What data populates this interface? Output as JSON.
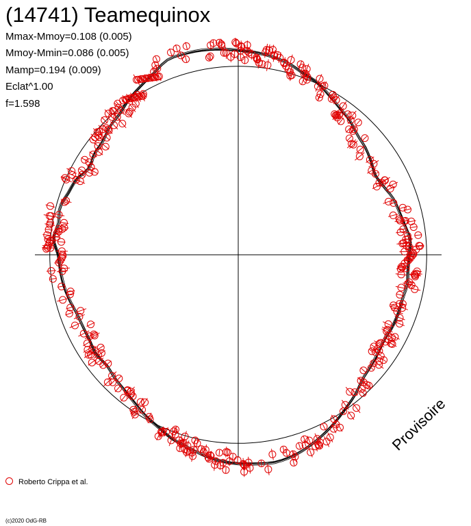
{
  "chart_data": {
    "type": "scatter",
    "title": "(14741) Teamequinox",
    "stats": [
      "Mmax-Mmoy=0.108 (0.005)",
      "Mmoy-Mmin=0.086 (0.005)",
      "Mamp=0.194 (0.009)",
      "Eclat^1.00",
      "f=1.598"
    ],
    "legend": [
      {
        "name": "Roberto Crippa et al.",
        "color": "#e00000"
      }
    ],
    "watermark": "Provisoire",
    "copyright": "(c)2020 OdG-RB",
    "axes": {
      "xlim": [
        -1,
        1
      ],
      "ylim": [
        -1,
        1
      ],
      "grid": false,
      "crosshair": true
    },
    "reference_circle": {
      "radius": 0.93
    },
    "model_curve": {
      "mmax_minus_mmoy": 0.108,
      "mmoy_minus_mmin": 0.086,
      "samples": 360
    },
    "points": [
      [
        0.0,
        0.862
      ],
      [
        5.0,
        0.87
      ],
      [
        10.0,
        0.853
      ],
      [
        15.0,
        0.84
      ],
      [
        20.0,
        0.83
      ],
      [
        25.0,
        0.808
      ],
      [
        30.0,
        0.795
      ],
      [
        35.0,
        0.812
      ],
      [
        40.0,
        0.83
      ],
      [
        45.0,
        0.842
      ],
      [
        50.0,
        0.868
      ],
      [
        55.0,
        0.887
      ],
      [
        60.0,
        0.912
      ],
      [
        65.0,
        0.941
      ],
      [
        70.0,
        0.958
      ],
      [
        75.0,
        0.983
      ],
      [
        80.0,
        1.0
      ],
      [
        85.0,
        1.01
      ],
      [
        90.0,
        1.018
      ],
      [
        95.0,
        1.028
      ],
      [
        100.0,
        1.035
      ],
      [
        105.0,
        1.037
      ],
      [
        110.0,
        1.034
      ],
      [
        115.0,
        1.0
      ],
      [
        120.0,
        0.975
      ],
      [
        125.0,
        0.953
      ],
      [
        130.0,
        0.925
      ],
      [
        135.0,
        0.913
      ],
      [
        140.0,
        0.89
      ],
      [
        145.0,
        0.885
      ],
      [
        150.0,
        0.87
      ],
      [
        155.0,
        0.9
      ],
      [
        160.0,
        0.912
      ],
      [
        165.0,
        0.93
      ],
      [
        170.0,
        0.92
      ],
      [
        175.0,
        0.935
      ],
      [
        180.0,
        0.908
      ],
      [
        185.0,
        0.9
      ],
      [
        190.0,
        0.893
      ],
      [
        195.0,
        0.88
      ],
      [
        200.0,
        0.865
      ],
      [
        205.0,
        0.86
      ],
      [
        210.0,
        0.86
      ],
      [
        215.0,
        0.868
      ],
      [
        220.0,
        0.858
      ],
      [
        225.0,
        0.87
      ],
      [
        230.0,
        0.881
      ],
      [
        235.0,
        0.9
      ],
      [
        240.0,
        0.925
      ],
      [
        245.0,
        0.945
      ],
      [
        250.0,
        0.972
      ],
      [
        255.0,
        0.99
      ],
      [
        260.0,
        1.012
      ],
      [
        265.0,
        1.03
      ],
      [
        270.0,
        1.04
      ],
      [
        275.0,
        1.045
      ],
      [
        280.0,
        1.05
      ],
      [
        285.0,
        1.04
      ],
      [
        290.0,
        1.02
      ],
      [
        295.0,
        0.995
      ],
      [
        300.0,
        0.968
      ],
      [
        305.0,
        0.94
      ],
      [
        310.0,
        0.915
      ],
      [
        315.0,
        0.885
      ],
      [
        320.0,
        0.872
      ],
      [
        325.0,
        0.861
      ],
      [
        330.0,
        0.852
      ],
      [
        335.0,
        0.858
      ],
      [
        340.0,
        0.86
      ],
      [
        345.0,
        0.858
      ],
      [
        350.0,
        0.865
      ],
      [
        355.0,
        0.86
      ]
    ]
  }
}
